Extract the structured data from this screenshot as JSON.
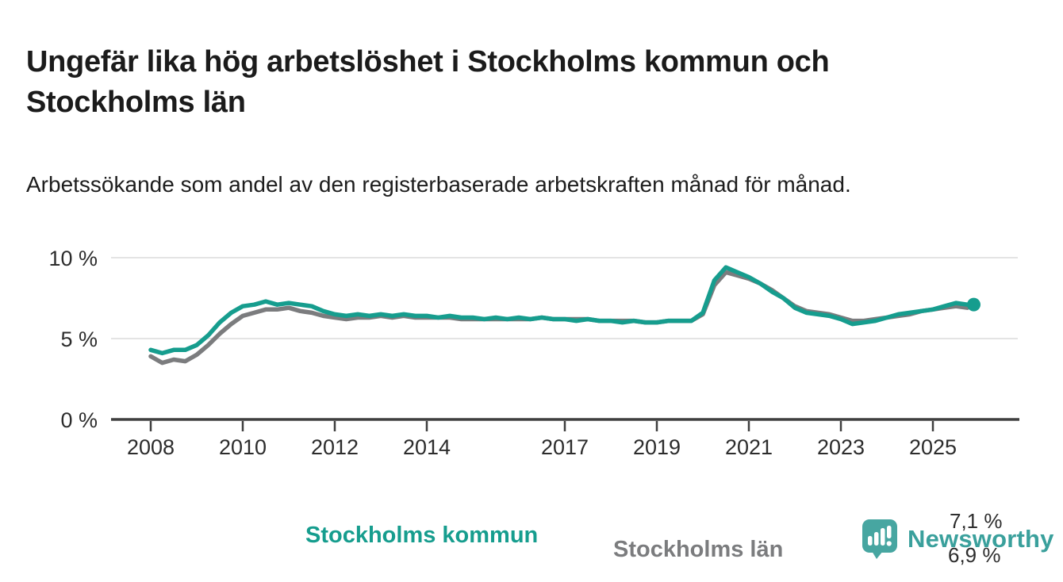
{
  "chart_data": {
    "type": "line",
    "title": "Ungefär lika hög arbetslöshet i Stockholms kommun och Stockholms län",
    "subtitle": "Arbetssökande som andel av den registerbaserade arbetskraften månad för månad.",
    "xlabel": "",
    "ylabel": "",
    "grid": "horizontal",
    "legend_position": "on-chart-labels",
    "ylim": [
      0,
      10.8
    ],
    "xlim": [
      2007.1,
      2026.9
    ],
    "yticks": [
      {
        "value": 0,
        "label": "0 %"
      },
      {
        "value": 5,
        "label": "5 %"
      },
      {
        "value": 10,
        "label": "10 %"
      }
    ],
    "xticks": [
      {
        "value": 2008,
        "label": "2008"
      },
      {
        "value": 2010,
        "label": "2010"
      },
      {
        "value": 2012,
        "label": "2012"
      },
      {
        "value": 2014,
        "label": "2014"
      },
      {
        "value": 2017,
        "label": "2017"
      },
      {
        "value": 2019,
        "label": "2019"
      },
      {
        "value": 2021,
        "label": "2021"
      },
      {
        "value": 2023,
        "label": "2023"
      },
      {
        "value": 2025,
        "label": "2025"
      }
    ],
    "x": [
      2008.0,
      2008.25,
      2008.5,
      2008.75,
      2009.0,
      2009.25,
      2009.5,
      2009.75,
      2010.0,
      2010.25,
      2010.5,
      2010.75,
      2011.0,
      2011.25,
      2011.5,
      2011.75,
      2012.0,
      2012.25,
      2012.5,
      2012.75,
      2013.0,
      2013.25,
      2013.5,
      2013.75,
      2014.0,
      2014.25,
      2014.5,
      2014.75,
      2015.0,
      2015.25,
      2015.5,
      2015.75,
      2016.0,
      2016.25,
      2016.5,
      2016.75,
      2017.0,
      2017.25,
      2017.5,
      2017.75,
      2018.0,
      2018.25,
      2018.5,
      2018.75,
      2019.0,
      2019.25,
      2019.5,
      2019.75,
      2020.0,
      2020.25,
      2020.5,
      2020.75,
      2021.0,
      2021.25,
      2021.5,
      2021.75,
      2022.0,
      2022.25,
      2022.5,
      2022.75,
      2023.0,
      2023.25,
      2023.5,
      2023.75,
      2024.0,
      2024.25,
      2024.5,
      2024.75,
      2025.0,
      2025.25,
      2025.5,
      2025.75
    ],
    "series": [
      {
        "name": "Stockholms kommun",
        "color": "#169d8e",
        "end_value_label": "7,1 %",
        "end_dot": true,
        "values": [
          4.3,
          4.1,
          4.3,
          4.3,
          4.6,
          5.2,
          6.0,
          6.6,
          7.0,
          7.1,
          7.3,
          7.1,
          7.2,
          7.1,
          7.0,
          6.7,
          6.5,
          6.4,
          6.5,
          6.4,
          6.5,
          6.4,
          6.5,
          6.4,
          6.4,
          6.3,
          6.4,
          6.3,
          6.3,
          6.2,
          6.3,
          6.2,
          6.3,
          6.2,
          6.3,
          6.2,
          6.2,
          6.1,
          6.2,
          6.1,
          6.1,
          6.0,
          6.1,
          6.0,
          6.0,
          6.1,
          6.1,
          6.1,
          6.6,
          8.6,
          9.4,
          9.1,
          8.8,
          8.4,
          7.9,
          7.5,
          6.9,
          6.6,
          6.5,
          6.4,
          6.2,
          5.9,
          6.0,
          6.1,
          6.3,
          6.5,
          6.6,
          6.7,
          6.8,
          7.0,
          7.2,
          7.1
        ]
      },
      {
        "name": "Stockholms län",
        "color": "#7b7c7e",
        "end_value_label": "6,9 %",
        "end_dot": false,
        "values": [
          3.9,
          3.5,
          3.7,
          3.6,
          4.0,
          4.6,
          5.3,
          5.9,
          6.4,
          6.6,
          6.8,
          6.8,
          6.9,
          6.7,
          6.6,
          6.4,
          6.3,
          6.2,
          6.3,
          6.3,
          6.4,
          6.3,
          6.4,
          6.3,
          6.3,
          6.3,
          6.3,
          6.2,
          6.2,
          6.2,
          6.2,
          6.2,
          6.2,
          6.2,
          6.3,
          6.2,
          6.2,
          6.2,
          6.2,
          6.1,
          6.1,
          6.1,
          6.1,
          6.0,
          6.0,
          6.1,
          6.1,
          6.1,
          6.5,
          8.3,
          9.1,
          8.9,
          8.7,
          8.4,
          8.0,
          7.5,
          7.0,
          6.7,
          6.6,
          6.5,
          6.3,
          6.1,
          6.1,
          6.2,
          6.3,
          6.4,
          6.5,
          6.7,
          6.8,
          6.9,
          7.0,
          6.9
        ]
      }
    ],
    "axis_color": "#3f3f3f",
    "grid_color": "#dcdcdc",
    "tick_label_color": "#2c2c2c"
  },
  "footer": {
    "brand": "Newsworthy",
    "brand_color": "#3aa09c",
    "logo_icon": "speech-bubble-bar-chart-icon",
    "logo_color": "#47a6a1"
  }
}
